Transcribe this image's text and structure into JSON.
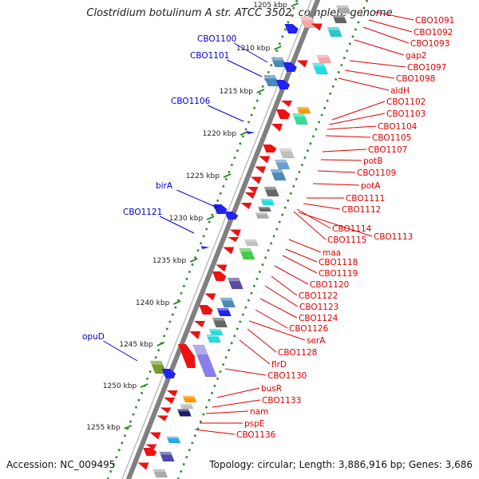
{
  "title": "Clostridium botulinum A str. ATCC 3502, complete genome",
  "footer": {
    "accession": "Accession: NC_009495",
    "topology": "Topology: circular; Length: 3,886,916 bp; Genes: 3,686"
  },
  "colors": {
    "backbone": "#808080",
    "dots": "#2e8b2e",
    "left_labels": "#0000cc",
    "right_labels": "#dd0000"
  },
  "kbp_ticks": [
    "1205 kbp",
    "1210 kbp",
    "1215 kbp",
    "1220 kbp",
    "1225 kbp",
    "1230 kbp",
    "1235 kbp",
    "1240 kbp",
    "1245 kbp",
    "1250 kbp",
    "1255 kbp"
  ],
  "left_labels": [
    "CBO1100",
    "CBO1101",
    "CBO1106",
    "birA",
    "CBO1121",
    "opuD"
  ],
  "right_labels": [
    "CBO1091",
    "CBO1092",
    "CBO1093",
    "gap2",
    "CBO1097",
    "CBO1098",
    "aldH",
    "CBO1102",
    "CBO1103",
    "CBO1104",
    "CBO1105",
    "CBO1107",
    "potB",
    "CBO1109",
    "potA",
    "CBO1111",
    "CBO1112",
    "CBO1114",
    "CBO1115",
    "CBO1113",
    "maa",
    "CBO1118",
    "CBO1119",
    "CBO1120",
    "CBO1122",
    "CBO1123",
    "CBO1124",
    "CBO1126",
    "serA",
    "CBO1128",
    "flrD",
    "CBO1130",
    "busR",
    "CBO1133",
    "nam",
    "pspE",
    "CBO1136"
  ]
}
